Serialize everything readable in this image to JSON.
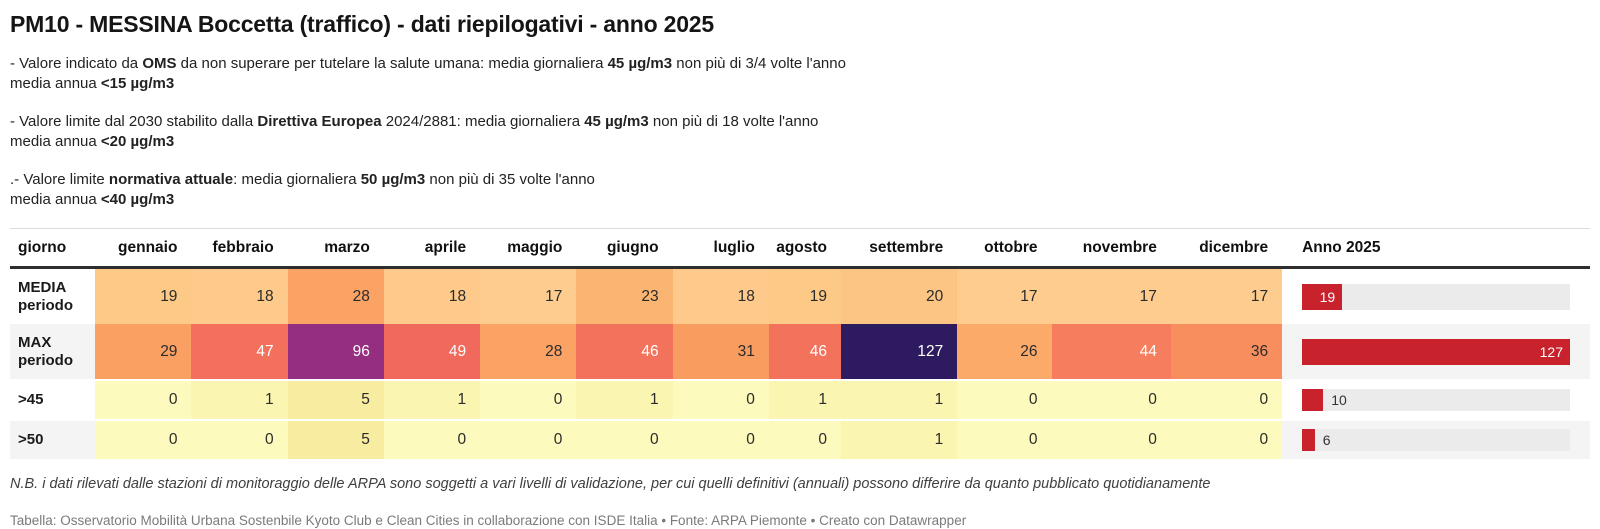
{
  "header": {
    "title": "PM10 - MESSINA Boccetta (traffico) - dati riepilogativi - anno 2025"
  },
  "notes": [
    {
      "lines": [
        [
          {
            "t": "- Valore indicato da "
          },
          {
            "t": "OMS",
            "b": 1
          },
          {
            "t": " da non superare per tutelare la salute umana: media giornaliera "
          },
          {
            "t": "45 µg/m3",
            "b": 1
          },
          {
            "t": " non più di 3/4 volte l'anno"
          }
        ],
        [
          {
            "t": "media annua "
          },
          {
            "t": "<15 µg/m3",
            "b": 1
          }
        ]
      ]
    },
    {
      "lines": [
        [
          {
            "t": "- Valore limite dal 2030 stabilito dalla "
          },
          {
            "t": "Direttiva Europea",
            "b": 1
          },
          {
            "t": " 2024/2881: media giornaliera "
          },
          {
            "t": "45 µg/m3",
            "b": 1
          },
          {
            "t": " non più di 18 volte l'anno"
          }
        ],
        [
          {
            "t": "media annua "
          },
          {
            "t": "<20 µg/m3",
            "b": 1
          }
        ]
      ]
    },
    {
      "lines": [
        [
          {
            "t": ".- Valore limite "
          },
          {
            "t": "normativa attuale",
            "b": 1
          },
          {
            "t": ": media giornaliera "
          },
          {
            "t": "50 µg/m3",
            "b": 1
          },
          {
            "t": " non più di 35 volte l'anno"
          }
        ],
        [
          {
            "t": "media annua "
          },
          {
            "t": "<40 µg/m3",
            "b": 1
          }
        ]
      ]
    }
  ],
  "chart_data": {
    "type": "table",
    "columns": [
      "giorno",
      "gennaio",
      "febbraio",
      "marzo",
      "aprile",
      "maggio",
      "giugno",
      "luglio",
      "agosto",
      "settembre",
      "ottobre",
      "novembre",
      "dicembre",
      "Anno 2025"
    ],
    "rows": [
      {
        "label": "MEDIA periodo",
        "values": [
          19,
          18,
          28,
          18,
          17,
          23,
          18,
          19,
          20,
          17,
          17,
          17
        ],
        "anno": 19
      },
      {
        "label": "MAX periodo",
        "values": [
          29,
          47,
          96,
          49,
          28,
          46,
          31,
          46,
          127,
          26,
          44,
          36
        ],
        "anno": 127
      },
      {
        "label": ">45",
        "values": [
          0,
          1,
          5,
          1,
          0,
          1,
          0,
          1,
          1,
          0,
          0,
          0
        ],
        "anno": 10
      },
      {
        "label": ">50",
        "values": [
          0,
          0,
          5,
          0,
          0,
          0,
          0,
          0,
          1,
          0,
          0,
          0
        ],
        "anno": 6
      }
    ],
    "bar_axis_max": 127,
    "bar_color": "#c8232c",
    "bar_track_color": "#ebebeb",
    "legend_position": "none",
    "grid": false
  },
  "heatmap": {
    "cell_bg": [
      [
        "#fcc987",
        "#fdca8b",
        "#faa365",
        "#fdca8b",
        "#fdcc8e",
        "#fbb573",
        "#fdca8b",
        "#fcc987",
        "#fcc584",
        "#fdcc8e",
        "#fdcc8e",
        "#fdcc8e"
      ],
      [
        "#faa062",
        "#f3705c",
        "#952d80",
        "#f1695c",
        "#faa365",
        "#f3725c",
        "#f99c60",
        "#f3725c",
        "#2e1b5f",
        "#fbaa6a",
        "#f67d5d",
        "#f88e5e"
      ],
      [
        "#fcfbbd",
        "#faf6b1",
        "#f7eca0",
        "#faf6b1",
        "#fcfbbd",
        "#faf6b1",
        "#fcfbbd",
        "#faf6b1",
        "#faf6b1",
        "#fcfbbd",
        "#fcfbbd",
        "#fcfbbd"
      ],
      [
        "#fcfbbd",
        "#fcfbbd",
        "#f7eca0",
        "#fcfbbd",
        "#fcfbbd",
        "#fcfbbd",
        "#fcfbbd",
        "#fcfbbd",
        "#faf6b1",
        "#fcfbbd",
        "#fcfbbd",
        "#fcfbbd"
      ]
    ],
    "cell_white_text": [
      [
        0,
        0,
        0,
        0,
        0,
        0,
        0,
        0,
        0,
        0,
        0,
        0
      ],
      [
        0,
        1,
        1,
        1,
        0,
        1,
        0,
        1,
        1,
        0,
        1,
        0
      ],
      [
        0,
        0,
        0,
        0,
        0,
        0,
        0,
        0,
        0,
        0,
        0,
        0
      ],
      [
        0,
        0,
        0,
        0,
        0,
        0,
        0,
        0,
        0,
        0,
        0,
        0
      ]
    ]
  },
  "footer": {
    "note": "N.B. i dati rilevati dalle stazioni di monitoraggio delle ARPA sono soggetti a vari livelli di validazione, per cui quelli definitivi (annuali) possono differire da quanto pubblicato quotidianamente",
    "credits": "Tabella: Osservatorio Mobilità Urbana Sostenbile Kyoto Club e Clean Cities in collaborazione con ISDE Italia • Fonte: ARPA Piemonte • Creato con Datawrapper"
  }
}
